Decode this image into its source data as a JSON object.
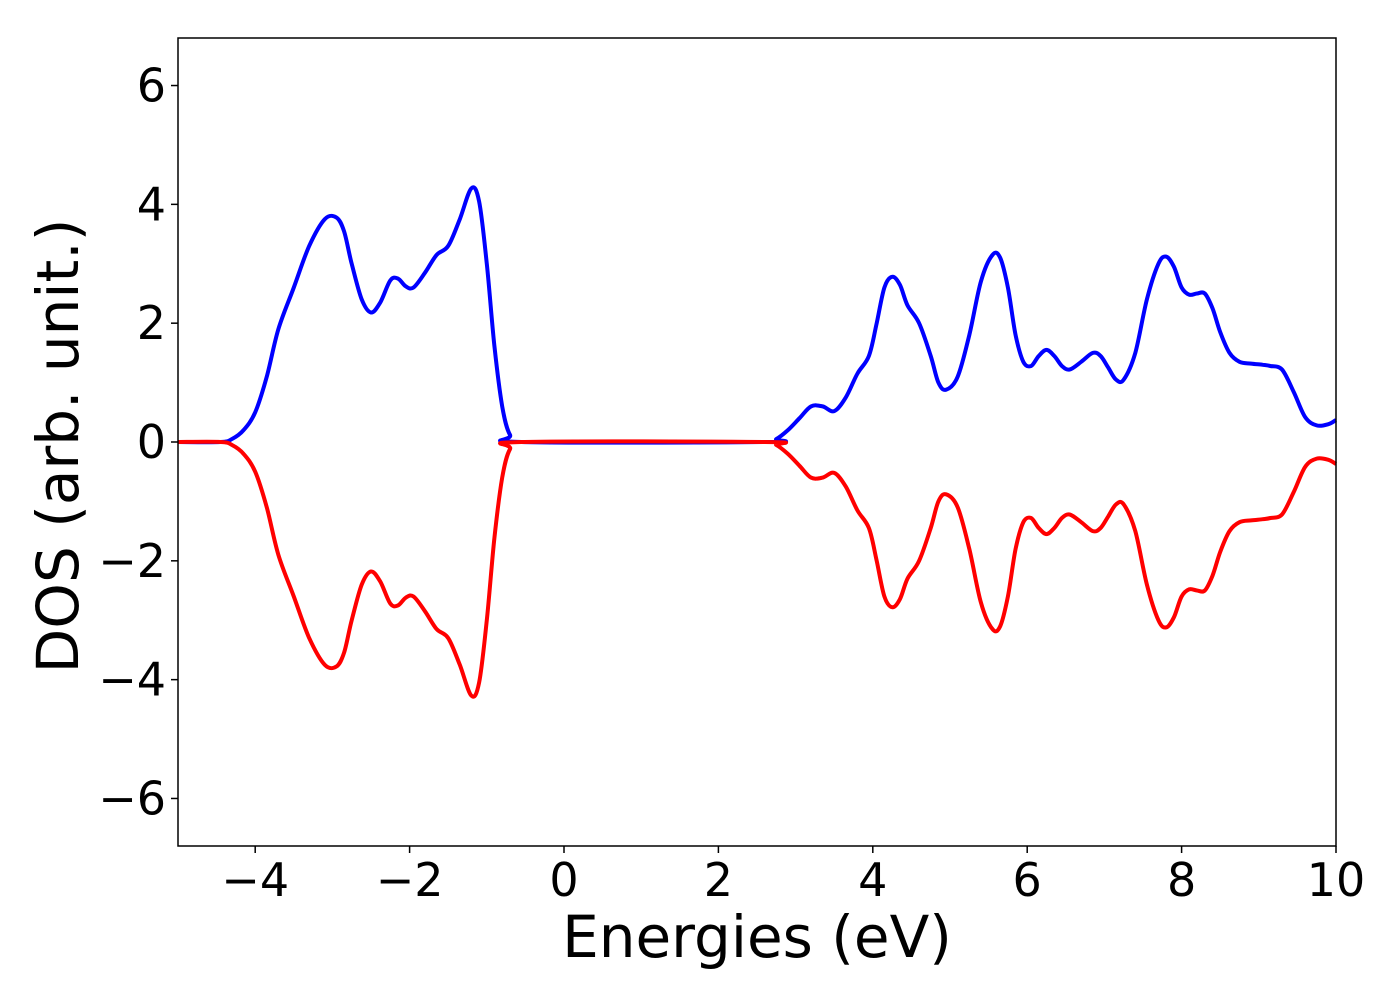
{
  "chart_data": {
    "type": "line",
    "title": "",
    "xlabel": "Energies (eV)",
    "ylabel": "DOS (arb. unit.)",
    "xlim": [
      -5,
      10
    ],
    "ylim": [
      -6.8,
      6.8
    ],
    "xticks": [
      -4,
      -2,
      0,
      2,
      4,
      6,
      8,
      10
    ],
    "yticks": [
      -6,
      -4,
      -2,
      0,
      2,
      4,
      6
    ],
    "grid": false,
    "legend": "none",
    "series": [
      {
        "color": "#0000ff",
        "points": [
          [
            -5.0,
            0.0
          ],
          [
            -4.45,
            0.0
          ],
          [
            -4.3,
            0.05
          ],
          [
            -4.15,
            0.2
          ],
          [
            -4.0,
            0.5
          ],
          [
            -3.85,
            1.1
          ],
          [
            -3.7,
            1.9
          ],
          [
            -3.5,
            2.6
          ],
          [
            -3.3,
            3.3
          ],
          [
            -3.1,
            3.75
          ],
          [
            -2.95,
            3.78
          ],
          [
            -2.85,
            3.55
          ],
          [
            -2.75,
            3.0
          ],
          [
            -2.62,
            2.4
          ],
          [
            -2.5,
            2.18
          ],
          [
            -2.38,
            2.35
          ],
          [
            -2.25,
            2.72
          ],
          [
            -2.15,
            2.75
          ],
          [
            -2.05,
            2.62
          ],
          [
            -1.95,
            2.6
          ],
          [
            -1.8,
            2.85
          ],
          [
            -1.65,
            3.15
          ],
          [
            -1.5,
            3.3
          ],
          [
            -1.35,
            3.75
          ],
          [
            -1.2,
            4.27
          ],
          [
            -1.1,
            4.05
          ],
          [
            -1.0,
            3.0
          ],
          [
            -0.9,
            1.6
          ],
          [
            -0.8,
            0.6
          ],
          [
            -0.7,
            0.12
          ],
          [
            -0.55,
            0.0
          ],
          [
            2.6,
            0.0
          ],
          [
            2.75,
            0.05
          ],
          [
            2.9,
            0.2
          ],
          [
            3.05,
            0.4
          ],
          [
            3.2,
            0.6
          ],
          [
            3.35,
            0.6
          ],
          [
            3.5,
            0.52
          ],
          [
            3.65,
            0.75
          ],
          [
            3.8,
            1.15
          ],
          [
            3.95,
            1.45
          ],
          [
            4.05,
            2.0
          ],
          [
            4.15,
            2.6
          ],
          [
            4.25,
            2.78
          ],
          [
            4.35,
            2.65
          ],
          [
            4.45,
            2.3
          ],
          [
            4.6,
            2.0
          ],
          [
            4.75,
            1.45
          ],
          [
            4.85,
            1.0
          ],
          [
            4.95,
            0.88
          ],
          [
            5.1,
            1.1
          ],
          [
            5.25,
            1.8
          ],
          [
            5.4,
            2.7
          ],
          [
            5.55,
            3.15
          ],
          [
            5.65,
            3.1
          ],
          [
            5.75,
            2.6
          ],
          [
            5.85,
            1.8
          ],
          [
            5.95,
            1.35
          ],
          [
            6.05,
            1.28
          ],
          [
            6.15,
            1.45
          ],
          [
            6.25,
            1.55
          ],
          [
            6.35,
            1.45
          ],
          [
            6.45,
            1.28
          ],
          [
            6.55,
            1.22
          ],
          [
            6.7,
            1.35
          ],
          [
            6.85,
            1.5
          ],
          [
            6.95,
            1.45
          ],
          [
            7.05,
            1.25
          ],
          [
            7.15,
            1.05
          ],
          [
            7.25,
            1.05
          ],
          [
            7.4,
            1.5
          ],
          [
            7.55,
            2.4
          ],
          [
            7.7,
            3.0
          ],
          [
            7.8,
            3.12
          ],
          [
            7.9,
            2.95
          ],
          [
            8.0,
            2.6
          ],
          [
            8.1,
            2.48
          ],
          [
            8.2,
            2.5
          ],
          [
            8.3,
            2.5
          ],
          [
            8.4,
            2.25
          ],
          [
            8.5,
            1.85
          ],
          [
            8.62,
            1.5
          ],
          [
            8.75,
            1.35
          ],
          [
            8.9,
            1.32
          ],
          [
            9.05,
            1.3
          ],
          [
            9.15,
            1.28
          ],
          [
            9.3,
            1.22
          ],
          [
            9.45,
            0.85
          ],
          [
            9.6,
            0.42
          ],
          [
            9.75,
            0.28
          ],
          [
            9.9,
            0.3
          ],
          [
            10.0,
            0.37
          ]
        ]
      },
      {
        "color": "#ff0000",
        "points": [
          [
            -5.0,
            0.0
          ],
          [
            -4.45,
            0.0
          ],
          [
            -4.3,
            -0.05
          ],
          [
            -4.15,
            -0.2
          ],
          [
            -4.0,
            -0.5
          ],
          [
            -3.85,
            -1.1
          ],
          [
            -3.7,
            -1.9
          ],
          [
            -3.5,
            -2.6
          ],
          [
            -3.3,
            -3.3
          ],
          [
            -3.1,
            -3.75
          ],
          [
            -2.95,
            -3.78
          ],
          [
            -2.85,
            -3.55
          ],
          [
            -2.75,
            -3.0
          ],
          [
            -2.62,
            -2.4
          ],
          [
            -2.5,
            -2.18
          ],
          [
            -2.38,
            -2.35
          ],
          [
            -2.25,
            -2.72
          ],
          [
            -2.15,
            -2.75
          ],
          [
            -2.05,
            -2.62
          ],
          [
            -1.95,
            -2.6
          ],
          [
            -1.8,
            -2.85
          ],
          [
            -1.65,
            -3.15
          ],
          [
            -1.5,
            -3.3
          ],
          [
            -1.35,
            -3.75
          ],
          [
            -1.2,
            -4.27
          ],
          [
            -1.1,
            -4.05
          ],
          [
            -1.0,
            -3.0
          ],
          [
            -0.9,
            -1.6
          ],
          [
            -0.8,
            -0.6
          ],
          [
            -0.7,
            -0.12
          ],
          [
            -0.55,
            0.0
          ],
          [
            2.6,
            0.0
          ],
          [
            2.75,
            -0.05
          ],
          [
            2.9,
            -0.2
          ],
          [
            3.05,
            -0.4
          ],
          [
            3.2,
            -0.6
          ],
          [
            3.35,
            -0.6
          ],
          [
            3.5,
            -0.52
          ],
          [
            3.65,
            -0.75
          ],
          [
            3.8,
            -1.15
          ],
          [
            3.95,
            -1.45
          ],
          [
            4.05,
            -2.0
          ],
          [
            4.15,
            -2.6
          ],
          [
            4.25,
            -2.78
          ],
          [
            4.35,
            -2.65
          ],
          [
            4.45,
            -2.3
          ],
          [
            4.6,
            -2.0
          ],
          [
            4.75,
            -1.45
          ],
          [
            4.85,
            -1.0
          ],
          [
            4.95,
            -0.88
          ],
          [
            5.1,
            -1.1
          ],
          [
            5.25,
            -1.8
          ],
          [
            5.4,
            -2.7
          ],
          [
            5.55,
            -3.15
          ],
          [
            5.65,
            -3.1
          ],
          [
            5.75,
            -2.6
          ],
          [
            5.85,
            -1.8
          ],
          [
            5.95,
            -1.35
          ],
          [
            6.05,
            -1.28
          ],
          [
            6.15,
            -1.45
          ],
          [
            6.25,
            -1.55
          ],
          [
            6.35,
            -1.45
          ],
          [
            6.45,
            -1.28
          ],
          [
            6.55,
            -1.22
          ],
          [
            6.7,
            -1.35
          ],
          [
            6.85,
            -1.5
          ],
          [
            6.95,
            -1.45
          ],
          [
            7.05,
            -1.25
          ],
          [
            7.15,
            -1.05
          ],
          [
            7.25,
            -1.05
          ],
          [
            7.4,
            -1.5
          ],
          [
            7.55,
            -2.4
          ],
          [
            7.7,
            -3.0
          ],
          [
            7.8,
            -3.12
          ],
          [
            7.9,
            -2.95
          ],
          [
            8.0,
            -2.6
          ],
          [
            8.1,
            -2.48
          ],
          [
            8.2,
            -2.5
          ],
          [
            8.3,
            -2.5
          ],
          [
            8.4,
            -2.25
          ],
          [
            8.5,
            -1.85
          ],
          [
            8.62,
            -1.5
          ],
          [
            8.75,
            -1.35
          ],
          [
            8.9,
            -1.32
          ],
          [
            9.05,
            -1.3
          ],
          [
            9.15,
            -1.28
          ],
          [
            9.3,
            -1.22
          ],
          [
            9.45,
            -0.85
          ],
          [
            9.6,
            -0.42
          ],
          [
            9.75,
            -0.28
          ],
          [
            9.9,
            -0.3
          ],
          [
            10.0,
            -0.37
          ]
        ]
      }
    ]
  }
}
